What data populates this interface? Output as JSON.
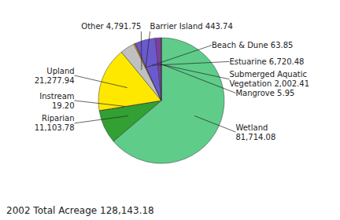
{
  "chart_data": {
    "type": "pie",
    "categories": [
      "Wetland\n81,714.08",
      "Riparian\n11,103.78",
      "Instream\n19.20",
      "Upland\n21,277.94",
      "Other 4,791.75",
      "Barrier Island 443.74",
      "Beach & Dune 63.85",
      "Estuarine 6,720.48",
      "Submerged Aquatic\nVegetation 2,002.41",
      "Mangrove 5.95"
    ],
    "values": [
      81714.08,
      11103.78,
      19.2,
      21277.94,
      4791.75,
      443.74,
      63.85,
      6720.48,
      2002.41,
      5.95
    ],
    "colors": [
      "#5FCC8A",
      "#32A032",
      "#228B22",
      "#FFE800",
      "#C0C0C0",
      "#FF8C00",
      "#4169E1",
      "#6A5ACD",
      "#7B3F9E",
      "#006400"
    ],
    "annotations": [
      "2002 Total Acreage 128,143.18"
    ]
  }
}
